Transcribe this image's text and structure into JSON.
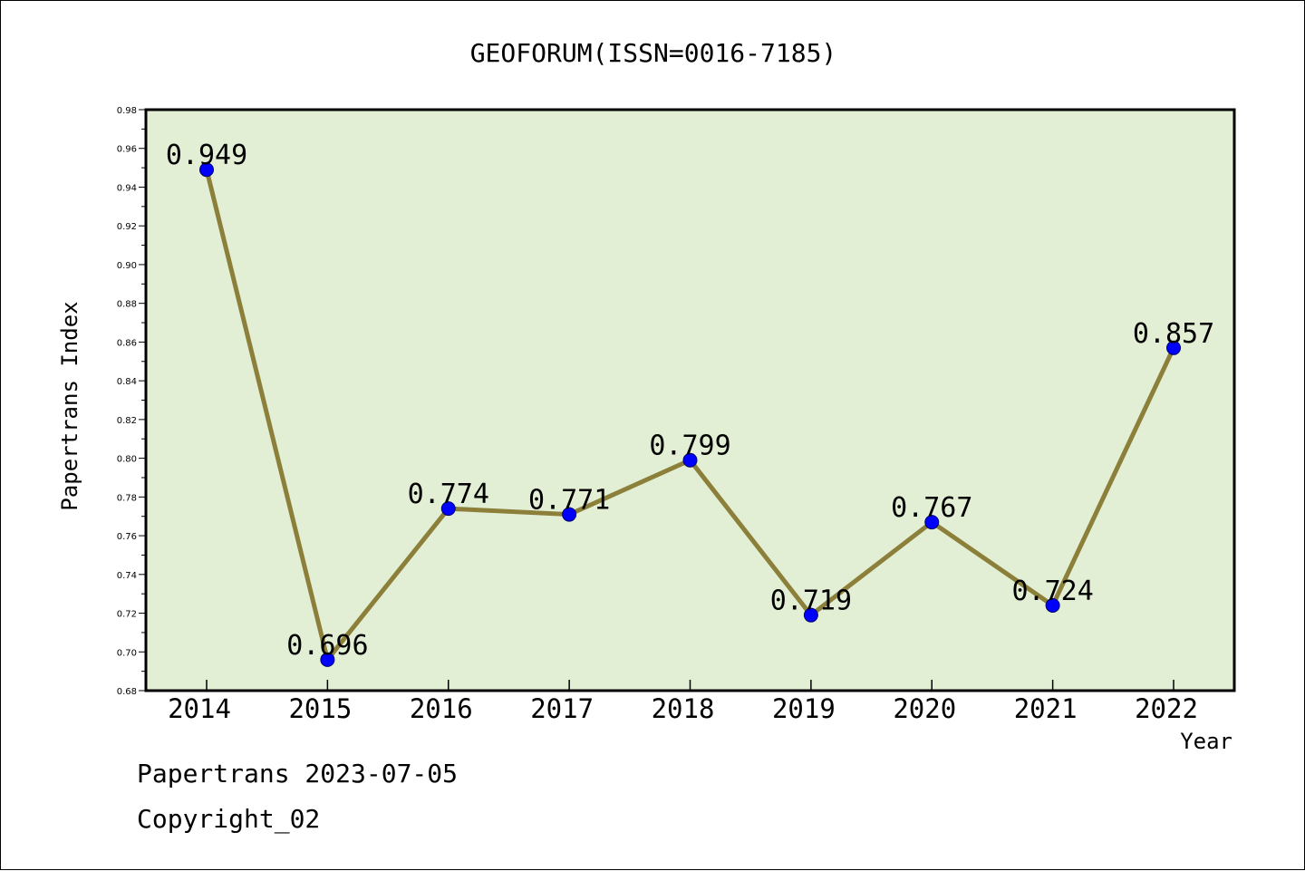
{
  "chart_data": {
    "type": "line",
    "title": "GEOFORUM(ISSN=0016-7185)",
    "xlabel": "Year",
    "ylabel": "Papertrans Index",
    "categories": [
      "2014",
      "2015",
      "2016",
      "2017",
      "2018",
      "2019",
      "2020",
      "2021",
      "2022"
    ],
    "series": [
      {
        "values": [
          0.949,
          0.696,
          0.774,
          0.771,
          0.799,
          0.719,
          0.767,
          0.724,
          0.857
        ]
      }
    ],
    "data_labels": [
      "0.949",
      "0.696",
      "0.774",
      "0.771",
      "0.799",
      "0.719",
      "0.767",
      "0.724",
      "0.857"
    ],
    "ylim": [
      0.68,
      0.98
    ],
    "y_ticks": [
      "0.68",
      "0.70",
      "0.72",
      "0.74",
      "0.76",
      "0.78",
      "0.80",
      "0.82",
      "0.84",
      "0.86",
      "0.88",
      "0.90",
      "0.92",
      "0.94",
      "0.96",
      "0.98"
    ],
    "grid": false,
    "legend": "none"
  },
  "footer": {
    "line1": "Papertrans 2023-07-05",
    "line2": "Copyright_02"
  },
  "colors": {
    "plot_background": "#e2efd5",
    "line": "#8b7f3a",
    "marker": "#0000ff",
    "axis": "#000000"
  }
}
